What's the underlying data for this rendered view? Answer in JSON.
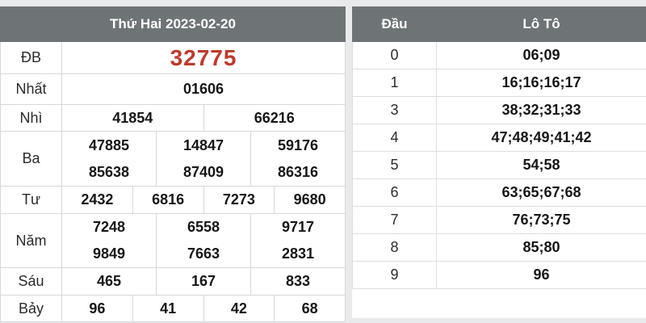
{
  "colors": {
    "header_bg": "#6e7476",
    "special_red": "#c0392b",
    "page_bg": "#e8eaeb",
    "border": "#d6d8d9"
  },
  "result_table": {
    "title": "Thứ Hai 2023-02-20",
    "rows": [
      {
        "key": "db",
        "label": "ĐB",
        "special": true,
        "values": [
          "32775"
        ]
      },
      {
        "key": "nhat",
        "label": "Nhất",
        "special": false,
        "values": [
          "01606"
        ]
      },
      {
        "key": "nhi",
        "label": "Nhì",
        "special": false,
        "values": [
          "41854",
          "66216"
        ]
      },
      {
        "key": "ba",
        "label": "Ba",
        "special": false,
        "values": [
          [
            "47885",
            "85638"
          ],
          [
            "14847",
            "87409"
          ],
          [
            "59176",
            "86316"
          ]
        ]
      },
      {
        "key": "tu",
        "label": "Tư",
        "special": false,
        "values": [
          "2432",
          "6816",
          "7273",
          "9680"
        ]
      },
      {
        "key": "nam",
        "label": "Năm",
        "special": false,
        "values": [
          [
            "7248",
            "9849"
          ],
          [
            "6558",
            "7663"
          ],
          [
            "9717",
            "2831"
          ]
        ]
      },
      {
        "key": "sau",
        "label": "Sáu",
        "special": false,
        "values": [
          "465",
          "167",
          "833"
        ]
      },
      {
        "key": "bay",
        "label": "Bảy",
        "special": false,
        "values": [
          "96",
          "41",
          "42",
          "68"
        ]
      }
    ]
  },
  "loto_table": {
    "headers": {
      "dau": "Đầu",
      "loto": "Lô Tô"
    },
    "rows": [
      {
        "dau": "0",
        "loto": "06;09"
      },
      {
        "dau": "1",
        "loto": "16;16;16;17"
      },
      {
        "dau": "3",
        "loto": "38;32;31;33"
      },
      {
        "dau": "4",
        "loto": "47;48;49;41;42"
      },
      {
        "dau": "5",
        "loto": "54;58"
      },
      {
        "dau": "6",
        "loto": "63;65;67;68"
      },
      {
        "dau": "7",
        "loto": "76;73;75"
      },
      {
        "dau": "8",
        "loto": "85;80"
      },
      {
        "dau": "9",
        "loto": "96"
      }
    ]
  }
}
